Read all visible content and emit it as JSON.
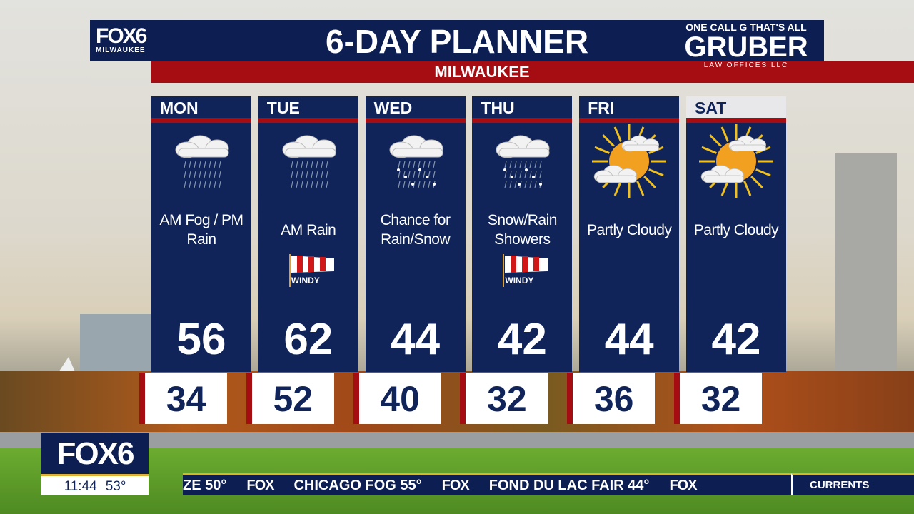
{
  "header": {
    "title": "6-DAY PLANNER",
    "location": "MILWAUKEE",
    "logo": "FOX6",
    "logo_sub": "MILWAUKEE",
    "sponsor": {
      "tagline": "ONE CALL G THAT'S ALL",
      "name": "GRUBER",
      "sub": "LAW OFFICES LLC"
    }
  },
  "days": [
    {
      "day": "MON",
      "icon": "rain-cloud-icon",
      "condition": "AM Fog / PM Rain",
      "windy": "",
      "high": "56",
      "low": "34"
    },
    {
      "day": "TUE",
      "icon": "rain-cloud-icon",
      "condition": "AM Rain",
      "windy": "WINDY",
      "high": "62",
      "low": "52"
    },
    {
      "day": "WED",
      "icon": "rain-snow-cloud-icon",
      "condition": "Chance for Rain/Snow",
      "windy": "",
      "high": "44",
      "low": "40"
    },
    {
      "day": "THU",
      "icon": "rain-snow-cloud-icon",
      "condition": "Snow/Rain Showers",
      "windy": "WINDY",
      "high": "42",
      "low": "32"
    },
    {
      "day": "FRI",
      "icon": "partly-cloudy-icon",
      "condition": "Partly Cloudy",
      "windy": "",
      "high": "44",
      "low": "36"
    },
    {
      "day": "SAT",
      "icon": "partly-cloudy-icon",
      "condition": "Partly Cloudy",
      "windy": "",
      "high": "42",
      "low": "32"
    }
  ],
  "bug": {
    "logo": "FOX6",
    "time": "11:44",
    "temp": "53°"
  },
  "ticker": {
    "items": [
      "ZE 50°",
      "FOX",
      "CHICAGO  FOG 55°",
      "FOX",
      "FOND DU LAC  FAIR 44°",
      "FOX"
    ],
    "section": "CURRENTS"
  },
  "colors": {
    "navy": "#10245a",
    "red": "#a50d12",
    "gold": "#e0b030"
  }
}
